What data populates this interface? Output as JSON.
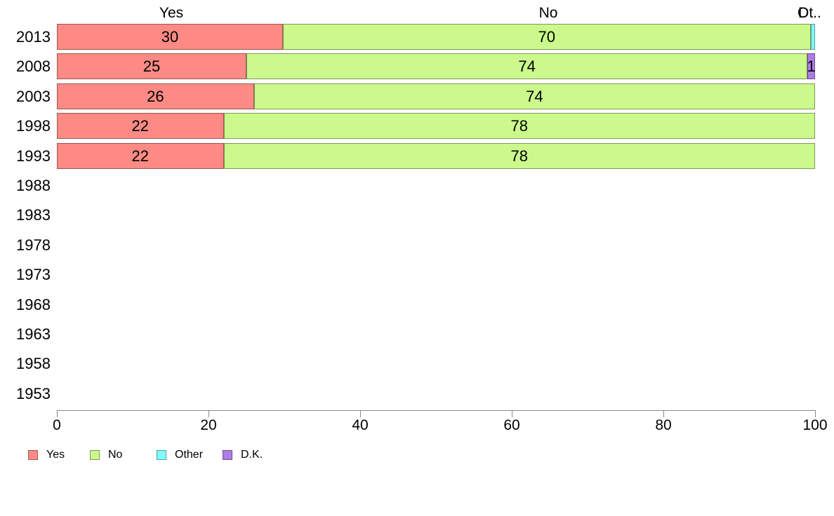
{
  "chart_data": {
    "type": "bar",
    "orientation": "horizontal",
    "stacked": true,
    "grid": false,
    "xlim": [
      0,
      100
    ],
    "x_ticks": [
      0,
      20,
      40,
      60,
      80,
      100
    ],
    "legend_position": "bottom-left",
    "column_headers": {
      "yes": "Yes",
      "no": "No",
      "other_truncated": "Ot..",
      "dk_overlap": "D"
    },
    "categories": [
      "2013",
      "2008",
      "2003",
      "1998",
      "1993",
      "1988",
      "1983",
      "1978",
      "1973",
      "1968",
      "1963",
      "1958",
      "1953"
    ],
    "series": [
      {
        "name": "Yes",
        "color": "#FD8A84",
        "values": [
          30,
          25,
          26,
          22,
          22,
          null,
          null,
          null,
          null,
          null,
          null,
          null,
          null
        ]
      },
      {
        "name": "No",
        "color": "#CBF98B",
        "values": [
          70,
          74,
          74,
          78,
          78,
          null,
          null,
          null,
          null,
          null,
          null,
          null,
          null
        ]
      },
      {
        "name": "Other",
        "color": "#82FCFE",
        "values": [
          0.6,
          0,
          0,
          0,
          0,
          null,
          null,
          null,
          null,
          null,
          null,
          null,
          null
        ]
      },
      {
        "name": "D.K.",
        "color": "#AE7CE6",
        "values": [
          0,
          1,
          0,
          0,
          0,
          null,
          null,
          null,
          null,
          null,
          null,
          null,
          null
        ]
      }
    ],
    "bar_value_labels": {
      "2013": [
        "30",
        "70",
        ""
      ],
      "2008": [
        "25",
        "74",
        "1"
      ],
      "2003": [
        "26",
        "74"
      ],
      "1998": [
        "22",
        "78"
      ],
      "1993": [
        "22",
        "78"
      ]
    },
    "legend": [
      "Yes",
      "No",
      "Other",
      "D.K."
    ]
  }
}
